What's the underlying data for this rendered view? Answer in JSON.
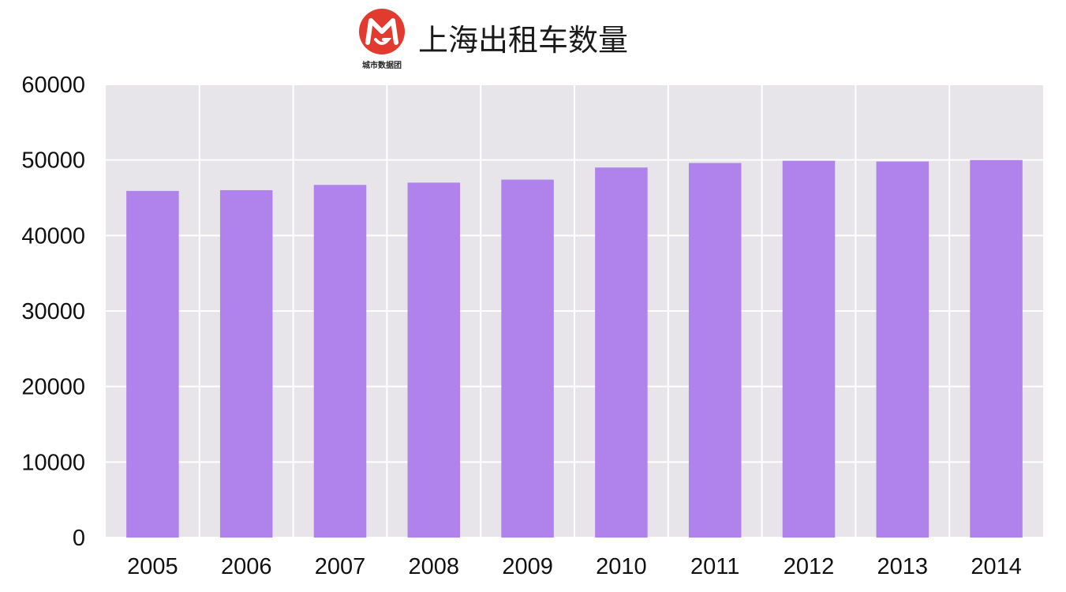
{
  "header": {
    "title": "上海出租车数量",
    "logo_caption": "城市数据团",
    "logo_icon": "city-data-team-logo-icon",
    "logo_color": "#e23a2f"
  },
  "chart_data": {
    "type": "bar",
    "title": "上海出租车数量",
    "xlabel": "",
    "ylabel": "",
    "categories": [
      "2005",
      "2006",
      "2007",
      "2008",
      "2009",
      "2010",
      "2011",
      "2012",
      "2013",
      "2014"
    ],
    "values": [
      45900,
      46000,
      46700,
      47000,
      47400,
      49000,
      49600,
      49900,
      49800,
      50000
    ],
    "ylim": [
      0,
      60000
    ],
    "yticks": [
      "0",
      "10000",
      "20000",
      "30000",
      "40000",
      "50000",
      "60000"
    ],
    "grid": true,
    "legend": "none",
    "colors": {
      "bar": "#b083ec",
      "plot_background": "#e7e5e9",
      "grid": "#ffffff"
    }
  }
}
